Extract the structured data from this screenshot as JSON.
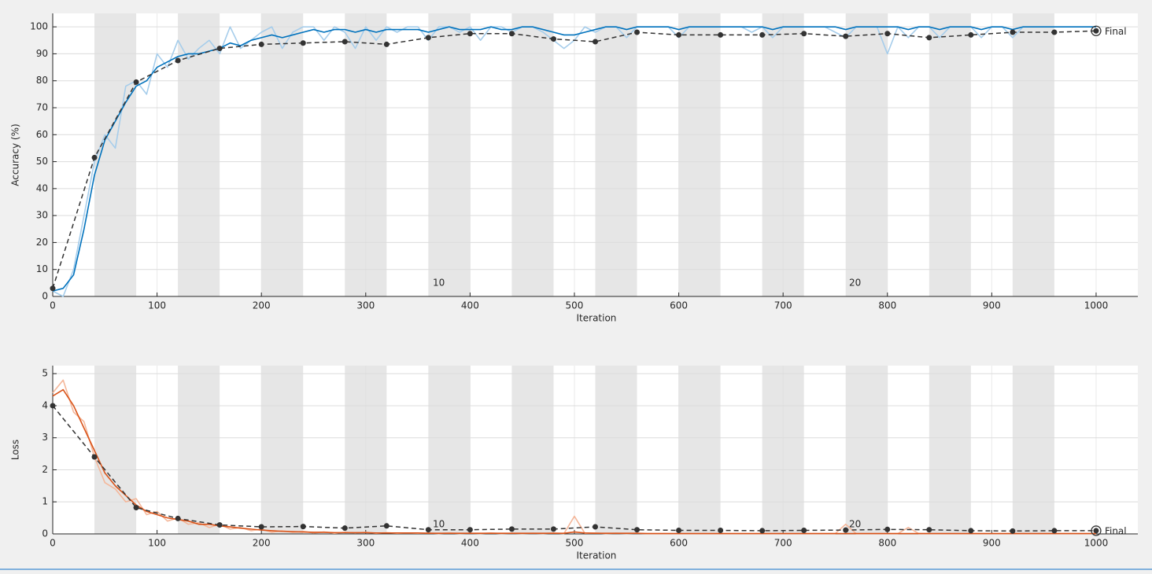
{
  "chart_data": [
    {
      "type": "line",
      "ylabel": "Accuracy (%)",
      "xlabel": "Iteration",
      "xlim": [
        0,
        1040
      ],
      "xticks": [
        0,
        100,
        200,
        300,
        400,
        500,
        600,
        700,
        800,
        900,
        1000
      ],
      "ylim": [
        0,
        105
      ],
      "yticks": [
        0,
        10,
        20,
        30,
        40,
        50,
        60,
        70,
        80,
        90,
        100
      ],
      "grid": true,
      "shaded_x": [
        [
          40,
          80
        ],
        [
          120,
          160
        ],
        [
          200,
          240
        ],
        [
          280,
          320
        ],
        [
          360,
          400
        ],
        [
          440,
          480
        ],
        [
          520,
          560
        ],
        [
          600,
          640
        ],
        [
          680,
          720
        ],
        [
          760,
          800
        ],
        [
          840,
          880
        ],
        [
          920,
          960
        ]
      ],
      "annotations": [
        {
          "text": "10",
          "x": 370,
          "y": 5
        },
        {
          "text": "20",
          "x": 769,
          "y": 5
        }
      ],
      "final_label": "Final",
      "series": [
        {
          "color": "#a6cdeb",
          "line_style": "solid",
          "x": [
            0,
            10,
            20,
            30,
            40,
            50,
            60,
            70,
            80,
            90,
            100,
            110,
            120,
            130,
            140,
            150,
            160,
            170,
            180,
            190,
            200,
            210,
            220,
            230,
            240,
            250,
            260,
            270,
            280,
            290,
            300,
            310,
            320,
            330,
            340,
            350,
            360,
            370,
            380,
            390,
            400,
            410,
            420,
            430,
            440,
            450,
            460,
            470,
            480,
            490,
            500,
            510,
            520,
            530,
            540,
            550,
            560,
            570,
            580,
            590,
            600,
            610,
            620,
            630,
            640,
            650,
            660,
            670,
            680,
            690,
            700,
            710,
            720,
            730,
            740,
            750,
            760,
            770,
            780,
            790,
            800,
            810,
            820,
            830,
            840,
            850,
            860,
            870,
            880,
            890,
            900,
            910,
            920,
            930,
            940,
            950,
            960,
            970,
            980,
            990,
            1000
          ],
          "values": [
            2,
            0,
            10,
            30,
            50,
            60,
            55,
            78,
            80,
            75,
            90,
            85,
            95,
            88,
            92,
            95,
            90,
            100,
            92,
            95,
            98,
            100,
            92,
            98,
            100,
            100,
            95,
            100,
            98,
            92,
            100,
            95,
            100,
            98,
            100,
            100,
            95,
            100,
            100,
            98,
            100,
            95,
            100,
            100,
            98,
            100,
            100,
            98,
            95,
            92,
            95,
            100,
            98,
            100,
            100,
            96,
            100,
            100,
            100,
            100,
            96,
            100,
            100,
            100,
            100,
            100,
            100,
            98,
            100,
            96,
            100,
            100,
            100,
            100,
            100,
            98,
            96,
            100,
            100,
            100,
            90,
            100,
            96,
            100,
            100,
            96,
            100,
            100,
            100,
            96,
            100,
            100,
            96,
            100,
            100,
            100,
            100,
            100,
            100,
            100,
            100
          ]
        },
        {
          "color": "#0072bd",
          "line_style": "solid",
          "x": [
            0,
            10,
            20,
            30,
            40,
            50,
            60,
            70,
            80,
            90,
            100,
            110,
            120,
            130,
            140,
            150,
            160,
            170,
            180,
            190,
            200,
            210,
            220,
            230,
            240,
            250,
            260,
            270,
            280,
            290,
            300,
            310,
            320,
            330,
            340,
            350,
            360,
            370,
            380,
            390,
            400,
            410,
            420,
            430,
            440,
            450,
            460,
            470,
            480,
            490,
            500,
            510,
            520,
            530,
            540,
            550,
            560,
            570,
            580,
            590,
            600,
            610,
            620,
            630,
            640,
            650,
            660,
            670,
            680,
            690,
            700,
            710,
            720,
            730,
            740,
            750,
            760,
            770,
            780,
            790,
            800,
            810,
            820,
            830,
            840,
            850,
            860,
            870,
            880,
            890,
            900,
            910,
            920,
            930,
            940,
            950,
            960,
            970,
            980,
            990,
            1000
          ],
          "values": [
            2,
            3,
            8,
            25,
            45,
            58,
            65,
            72,
            78,
            80,
            85,
            87,
            89,
            90,
            90,
            91,
            92,
            94,
            93,
            95,
            96,
            97,
            96,
            97,
            98,
            99,
            98,
            99,
            99,
            98,
            99,
            98,
            99,
            99,
            99,
            99,
            98,
            99,
            100,
            99,
            99,
            99,
            100,
            99,
            99,
            100,
            100,
            99,
            98,
            97,
            97,
            98,
            99,
            100,
            100,
            99,
            100,
            100,
            100,
            100,
            99,
            100,
            100,
            100,
            100,
            100,
            100,
            100,
            100,
            99,
            100,
            100,
            100,
            100,
            100,
            100,
            99,
            100,
            100,
            100,
            100,
            100,
            99,
            100,
            100,
            99,
            100,
            100,
            100,
            99,
            100,
            100,
            99,
            100,
            100,
            100,
            100,
            100,
            100,
            100,
            100
          ]
        },
        {
          "color": "#333333",
          "line_style": "dashed",
          "marker": "o",
          "final": true,
          "x": [
            0,
            40,
            80,
            120,
            160,
            200,
            240,
            280,
            320,
            360,
            400,
            440,
            480,
            520,
            560,
            600,
            640,
            680,
            720,
            760,
            800,
            840,
            880,
            920,
            960,
            1000
          ],
          "values": [
            3,
            51.5,
            79.5,
            87.5,
            92,
            93.5,
            94,
            94.5,
            93.5,
            96,
            97.5,
            97.5,
            95.5,
            94.5,
            98,
            97,
            97,
            97,
            97.5,
            96.5,
            97.5,
            96,
            97,
            98,
            98,
            98.5
          ]
        }
      ]
    },
    {
      "type": "line",
      "ylabel": "Loss",
      "xlabel": "Iteration",
      "xlim": [
        0,
        1040
      ],
      "xticks": [
        0,
        100,
        200,
        300,
        400,
        500,
        600,
        700,
        800,
        900,
        1000
      ],
      "ylim": [
        0,
        5.25
      ],
      "yticks": [
        0,
        1,
        2,
        3,
        4,
        5
      ],
      "grid": true,
      "shaded_x": [
        [
          40,
          80
        ],
        [
          120,
          160
        ],
        [
          200,
          240
        ],
        [
          280,
          320
        ],
        [
          360,
          400
        ],
        [
          440,
          480
        ],
        [
          520,
          560
        ],
        [
          600,
          640
        ],
        [
          680,
          720
        ],
        [
          760,
          800
        ],
        [
          840,
          880
        ],
        [
          920,
          960
        ]
      ],
      "annotations": [
        {
          "text": "10",
          "x": 370,
          "y": 0.3
        },
        {
          "text": "20",
          "x": 769,
          "y": 0.3
        }
      ],
      "final_label": "Final",
      "series": [
        {
          "color": "#f4b79a",
          "line_style": "solid",
          "x": [
            0,
            10,
            20,
            30,
            40,
            50,
            60,
            70,
            80,
            90,
            100,
            110,
            120,
            130,
            140,
            150,
            160,
            170,
            180,
            190,
            200,
            210,
            220,
            230,
            240,
            250,
            260,
            270,
            280,
            290,
            300,
            310,
            320,
            330,
            340,
            350,
            360,
            370,
            380,
            390,
            400,
            410,
            420,
            430,
            440,
            450,
            460,
            470,
            480,
            490,
            500,
            510,
            520,
            530,
            540,
            550,
            560,
            570,
            580,
            590,
            600,
            610,
            620,
            630,
            640,
            650,
            660,
            670,
            680,
            690,
            700,
            710,
            720,
            730,
            740,
            750,
            760,
            770,
            780,
            790,
            800,
            810,
            820,
            830,
            840,
            850,
            860,
            870,
            880,
            890,
            900,
            910,
            920,
            930,
            940,
            950,
            960,
            970,
            980,
            990,
            1000
          ],
          "values": [
            4.4,
            4.8,
            3.8,
            3.5,
            2.4,
            1.6,
            1.4,
            1.0,
            1.1,
            0.6,
            0.7,
            0.4,
            0.5,
            0.3,
            0.35,
            0.2,
            0.3,
            0.15,
            0.2,
            0.1,
            0.15,
            0.05,
            0.1,
            0.05,
            0.08,
            0.03,
            0.06,
            0.02,
            0.05,
            0.03,
            0.05,
            0.02,
            0.04,
            0.02,
            0.03,
            0.02,
            0.03,
            0.01,
            0.03,
            0.01,
            0.02,
            0.01,
            0.03,
            0.01,
            0.02,
            0.01,
            0.02,
            0.01,
            0.03,
            0.01,
            0.55,
            0.02,
            0.03,
            0.01,
            0.02,
            0.01,
            0.02,
            0.01,
            0.01,
            0.01,
            0.01,
            0.01,
            0.01,
            0.01,
            0.01,
            0.01,
            0.01,
            0.01,
            0.01,
            0.01,
            0.01,
            0.01,
            0.01,
            0.01,
            0.01,
            0.01,
            0.3,
            0.01,
            0.01,
            0.01,
            0.01,
            0.01,
            0.2,
            0.01,
            0.01,
            0.01,
            0.01,
            0.01,
            0.01,
            0.01,
            0.01,
            0.01,
            0.01,
            0.01,
            0.01,
            0.01,
            0.01,
            0.01,
            0.01,
            0.01,
            0.01
          ]
        },
        {
          "color": "#d95319",
          "line_style": "solid",
          "x": [
            0,
            10,
            20,
            30,
            40,
            50,
            60,
            70,
            80,
            90,
            100,
            110,
            120,
            130,
            140,
            150,
            160,
            170,
            180,
            190,
            200,
            210,
            220,
            230,
            240,
            250,
            260,
            270,
            280,
            290,
            300,
            310,
            320,
            330,
            340,
            350,
            360,
            370,
            380,
            390,
            400,
            410,
            420,
            430,
            440,
            450,
            460,
            470,
            480,
            490,
            500,
            510,
            520,
            530,
            540,
            550,
            560,
            570,
            580,
            590,
            600,
            610,
            620,
            630,
            640,
            650,
            660,
            670,
            680,
            690,
            700,
            710,
            720,
            730,
            740,
            750,
            760,
            770,
            780,
            790,
            800,
            810,
            820,
            830,
            840,
            850,
            860,
            870,
            880,
            890,
            900,
            910,
            920,
            930,
            940,
            950,
            960,
            970,
            980,
            990,
            1000
          ],
          "values": [
            4.3,
            4.5,
            4.0,
            3.3,
            2.6,
            1.9,
            1.5,
            1.2,
            0.9,
            0.7,
            0.6,
            0.5,
            0.45,
            0.4,
            0.3,
            0.3,
            0.25,
            0.22,
            0.18,
            0.15,
            0.12,
            0.1,
            0.08,
            0.07,
            0.06,
            0.05,
            0.05,
            0.04,
            0.04,
            0.04,
            0.04,
            0.03,
            0.03,
            0.03,
            0.03,
            0.03,
            0.02,
            0.02,
            0.02,
            0.02,
            0.02,
            0.02,
            0.02,
            0.02,
            0.02,
            0.02,
            0.02,
            0.02,
            0.02,
            0.02,
            0.06,
            0.03,
            0.02,
            0.02,
            0.02,
            0.02,
            0.02,
            0.01,
            0.01,
            0.01,
            0.01,
            0.01,
            0.01,
            0.01,
            0.01,
            0.01,
            0.01,
            0.01,
            0.01,
            0.01,
            0.01,
            0.01,
            0.01,
            0.01,
            0.01,
            0.01,
            0.01,
            0.01,
            0.01,
            0.01,
            0.01,
            0.01,
            0.01,
            0.01,
            0.01,
            0.01,
            0.01,
            0.01,
            0.01,
            0.01,
            0.01,
            0.01,
            0.01,
            0.01,
            0.01,
            0.01,
            0.01,
            0.01,
            0.01,
            0.01,
            0.01
          ]
        },
        {
          "color": "#333333",
          "line_style": "dashed",
          "marker": "o",
          "final": true,
          "x": [
            0,
            40,
            80,
            120,
            160,
            200,
            240,
            280,
            320,
            360,
            400,
            440,
            480,
            520,
            560,
            600,
            640,
            680,
            720,
            760,
            800,
            840,
            880,
            920,
            960,
            1000
          ],
          "values": [
            4.0,
            2.4,
            0.82,
            0.48,
            0.28,
            0.22,
            0.23,
            0.18,
            0.25,
            0.13,
            0.13,
            0.15,
            0.15,
            0.22,
            0.13,
            0.11,
            0.11,
            0.1,
            0.11,
            0.12,
            0.14,
            0.13,
            0.1,
            0.09,
            0.1,
            0.1
          ]
        }
      ]
    }
  ]
}
